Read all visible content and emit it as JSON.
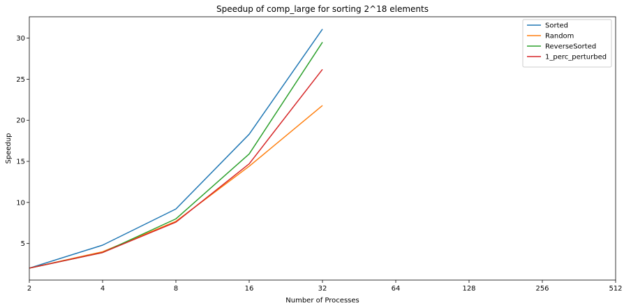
{
  "chart_data": {
    "type": "line",
    "title": "Speedup of comp_large for sorting 2^18 elements",
    "xlabel": "Number of Processes",
    "ylabel": "Speedup",
    "x_scale": "log2",
    "x_ticks": [
      2,
      4,
      8,
      16,
      32,
      64,
      128,
      256,
      512
    ],
    "x_tick_labels": [
      "2",
      "4",
      "8",
      "16",
      "32",
      "64",
      "128",
      "256",
      "512"
    ],
    "xlim": [
      2,
      512
    ],
    "y_ticks": [
      5,
      10,
      15,
      20,
      25,
      30
    ],
    "y_tick_labels": [
      "5",
      "10",
      "15",
      "20",
      "25",
      "30"
    ],
    "ylim": [
      0.55,
      32.6
    ],
    "grid": false,
    "legend_position": "top-right",
    "x": [
      2,
      4,
      8,
      16,
      32
    ],
    "series": [
      {
        "name": "Sorted",
        "color": "#1f77b4",
        "values": [
          2.0,
          4.8,
          9.2,
          18.3,
          31.1
        ]
      },
      {
        "name": "Random",
        "color": "#ff7f0e",
        "values": [
          2.0,
          4.0,
          7.7,
          14.4,
          21.8
        ]
      },
      {
        "name": "ReverseSorted",
        "color": "#2ca02c",
        "values": [
          2.0,
          3.9,
          8.0,
          15.9,
          29.5
        ]
      },
      {
        "name": "1_perc_perturbed",
        "color": "#d62728",
        "values": [
          2.0,
          3.9,
          7.6,
          14.7,
          26.2
        ]
      }
    ]
  }
}
